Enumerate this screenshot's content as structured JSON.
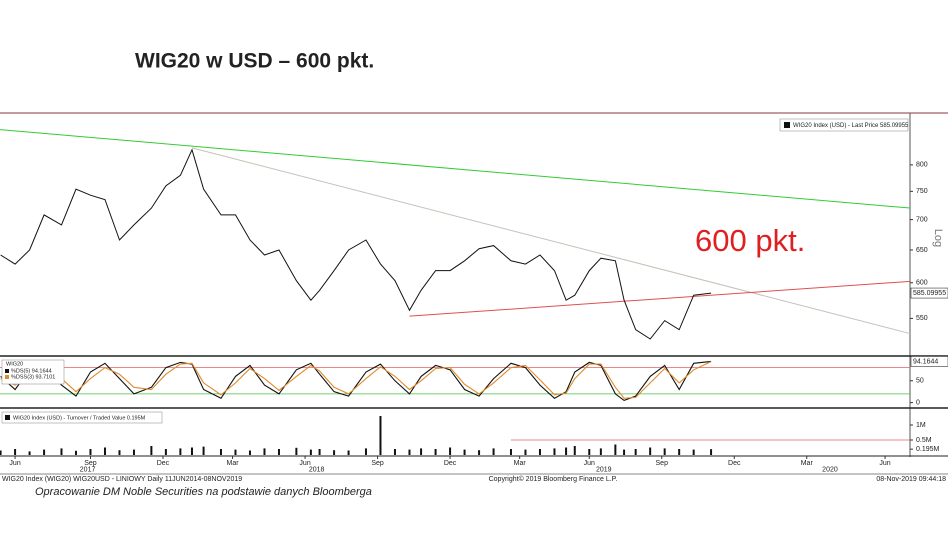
{
  "header": {
    "title": "WIG20 w USD – 600 pkt."
  },
  "footer": {
    "left": "WIG20 Index (WIG20) WIG20USD - LINIOWY  Daily 11JUN2014-08NOV2019",
    "center": "Copyright© 2019 Bloomberg Finance L.P.",
    "right": "08-Nov-2019 09:44:18",
    "source": "Opracowanie DM Noble Securities na podstawie danych Bloomberga"
  },
  "chart_data": [
    {
      "type": "line",
      "log_scale": true,
      "y_axis_label": "Log",
      "annotation": "600 pkt.",
      "annotation_color": "#e02020",
      "x": [
        2017.4,
        2017.45,
        2017.5,
        2017.55,
        2017.61,
        2017.66,
        2017.71,
        2017.76,
        2017.81,
        2017.86,
        2017.92,
        2017.97,
        2018.02,
        2018.06,
        2018.1,
        2018.16,
        2018.21,
        2018.26,
        2018.31,
        2018.36,
        2018.42,
        2018.47,
        2018.5,
        2018.55,
        2018.6,
        2018.66,
        2018.71,
        2018.76,
        2018.81,
        2018.85,
        2018.9,
        2018.95,
        2019.0,
        2019.05,
        2019.1,
        2019.16,
        2019.21,
        2019.26,
        2019.31,
        2019.35,
        2019.38,
        2019.43,
        2019.47,
        2019.52,
        2019.55,
        2019.59,
        2019.64,
        2019.69,
        2019.74,
        2019.79,
        2019.85
      ],
      "series": [
        {
          "name": "WIG20 Index (USD) - Last Price 585.09955",
          "color": "#111111",
          "values": [
            642,
            628,
            650,
            708,
            691,
            754,
            743,
            735,
            666,
            691,
            720,
            760,
            780,
            830,
            754,
            708,
            708,
            666,
            642,
            650,
            603,
            575,
            589,
            618,
            650,
            666,
            628,
            603,
            561,
            589,
            618,
            618,
            633,
            652,
            657,
            633,
            628,
            642,
            618,
            575,
            582,
            618,
            637,
            633,
            575,
            535,
            523,
            547,
            535,
            582,
            585.09955
          ]
        }
      ],
      "last_value": 585.09955,
      "trend_lines": [
        {
          "color": "#33cc33",
          "points": [
            [
              2017.398,
              872
            ],
            [
              2020.536,
              720
            ]
          ]
        },
        {
          "color": "#c8c0b8",
          "points": [
            [
              2018.06,
              834
            ],
            [
              2020.536,
              530
            ]
          ]
        },
        {
          "color": "#e05050",
          "points": [
            [
              2018.81,
              553
            ],
            [
              2020.536,
              602
            ]
          ]
        }
      ],
      "xlim": [
        2017.398,
        2020.536
      ],
      "ylim": [
        503,
        897
      ],
      "yticks": [
        550,
        600,
        650,
        700,
        750,
        800
      ],
      "xticks": [
        {
          "value": 2017.45,
          "label": "Jun"
        },
        {
          "value": 2017.71,
          "label": "Sep"
        },
        {
          "value": 2017.96,
          "label": "Dec"
        },
        {
          "value": 2018.2,
          "label": "Mar"
        },
        {
          "value": 2018.45,
          "label": "Jun"
        },
        {
          "value": 2018.7,
          "label": "Sep"
        },
        {
          "value": 2018.95,
          "label": "Dec"
        },
        {
          "value": 2019.19,
          "label": "Mar"
        },
        {
          "value": 2019.43,
          "label": "Jun"
        },
        {
          "value": 2019.68,
          "label": "Sep"
        },
        {
          "value": 2019.93,
          "label": "Dec"
        },
        {
          "value": 2020.18,
          "label": "Mar"
        },
        {
          "value": 2020.45,
          "label": "Jun"
        }
      ],
      "year_ticks": [
        {
          "value": 2017.7,
          "label": "2017"
        },
        {
          "value": 2018.49,
          "label": "2018"
        },
        {
          "value": 2019.48,
          "label": "2019"
        },
        {
          "value": 2020.26,
          "label": "2020"
        }
      ]
    },
    {
      "type": "line",
      "title": "WIG20",
      "series": [
        {
          "name": "%DS(5) 94.1644",
          "color": "#111111",
          "values": [
            60,
            30,
            75,
            85,
            40,
            15,
            70,
            90,
            55,
            20,
            35,
            80,
            92,
            88,
            30,
            10,
            60,
            85,
            40,
            20,
            75,
            90,
            65,
            25,
            15,
            70,
            88,
            50,
            20,
            60,
            85,
            75,
            30,
            15,
            55,
            90,
            80,
            40,
            10,
            25,
            70,
            92,
            85,
            20,
            5,
            15,
            60,
            85,
            30,
            90,
            94.1644
          ]
        },
        {
          "name": "%DSS(3) 93.7101",
          "color": "#e08a2a",
          "values": [
            55,
            40,
            60,
            80,
            55,
            25,
            55,
            80,
            65,
            35,
            30,
            65,
            88,
            90,
            45,
            18,
            45,
            78,
            55,
            28,
            60,
            85,
            72,
            35,
            20,
            55,
            82,
            60,
            30,
            50,
            78,
            80,
            42,
            20,
            45,
            80,
            85,
            52,
            18,
            22,
            55,
            88,
            88,
            35,
            10,
            12,
            45,
            78,
            45,
            75,
            93.7101
          ]
        }
      ],
      "last_value": 94.1644,
      "levels": [
        {
          "value": 80,
          "color": "#e06060"
        },
        {
          "value": 20,
          "color": "#40c040"
        }
      ],
      "ylim": [
        -10,
        102
      ],
      "yticks": [
        0,
        50
      ]
    },
    {
      "type": "bar",
      "color": "#111111",
      "series": [
        {
          "name": "WIG20 Index (USD) - Turnover / Traded Value 0.195M",
          "values": [
            0.15,
            0.2,
            0.12,
            0.18,
            0.22,
            0.14,
            0.2,
            0.25,
            0.16,
            0.18,
            0.3,
            0.2,
            0.22,
            0.25,
            0.28,
            0.2,
            0.18,
            0.15,
            0.22,
            0.2,
            0.24,
            0.18,
            0.2,
            0.16,
            0.15,
            0.22,
            1.3,
            0.2,
            0.18,
            0.22,
            0.2,
            0.25,
            0.18,
            0.16,
            0.22,
            0.2,
            0.18,
            0.2,
            0.22,
            0.25,
            0.3,
            0.2,
            0.22,
            0.35,
            0.18,
            0.2,
            0.25,
            0.22,
            0.2,
            0.18,
            0.195
          ]
        }
      ],
      "levels": [
        {
          "value": 0.5,
          "from": 2019.16,
          "color": "#e06060"
        }
      ],
      "ylim": [
        0,
        1.5
      ],
      "yticks": [
        {
          "value": 0.195,
          "label": "0.195M"
        },
        {
          "value": 0.5,
          "label": "0.5M"
        },
        {
          "value": 1,
          "label": "1M"
        }
      ]
    }
  ]
}
